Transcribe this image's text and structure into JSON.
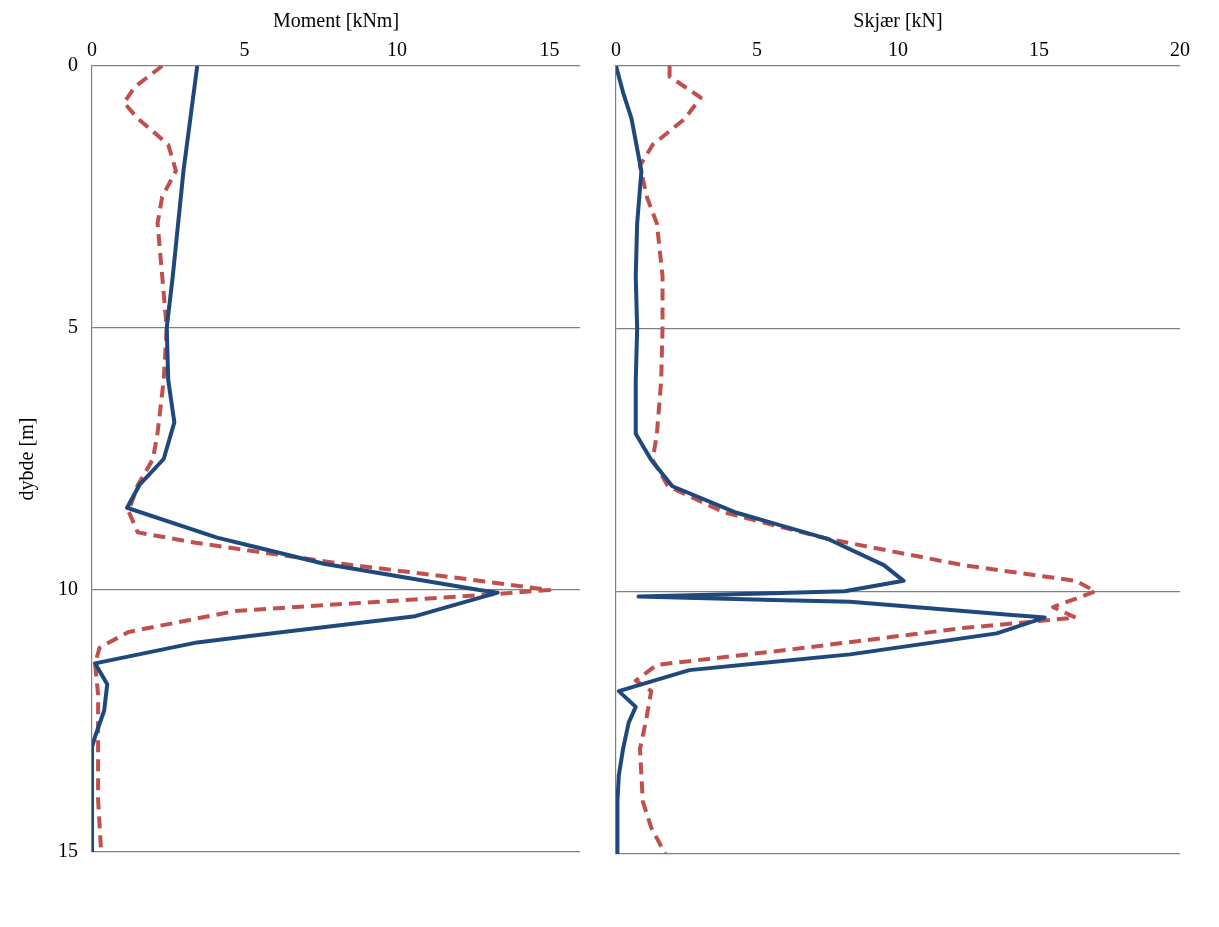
{
  "chart_data": [
    {
      "type": "line",
      "xlabel": "Moment [kNm]",
      "ylabel": "dybde [m]",
      "xlim": [
        0,
        16
      ],
      "xticks": [
        0,
        5,
        10,
        15
      ],
      "ylim": [
        15,
        0
      ],
      "yticks": [
        0,
        5,
        10,
        15
      ],
      "grid": "y",
      "legend": false,
      "marker": "none",
      "series": [
        {
          "color": "#1f497d",
          "line_style": "solid",
          "x": [
            3.45,
            3.0,
            2.65,
            2.45,
            2.5,
            2.7,
            2.35,
            1.55,
            1.15,
            4.1,
            7.6,
            12.7,
            13.3,
            10.6,
            3.45,
            0.1,
            0.5,
            0.4,
            0.1,
            0,
            0
          ],
          "values": [
            0,
            2,
            4,
            5,
            6,
            6.8,
            7.5,
            8,
            8.43,
            9,
            9.5,
            10,
            10.05,
            10.5,
            11,
            11.4,
            11.8,
            12.3,
            12.8,
            13,
            15
          ]
        },
        {
          "color": "#c0504d",
          "line_style": "dashed",
          "x": [
            2.3,
            1.4,
            1.05,
            1.5,
            2.5,
            2.75,
            2.3,
            2.15,
            2.3,
            2.45,
            2.35,
            2.15,
            2.0,
            1.5,
            1.2,
            1.5,
            3.4,
            8.2,
            12.4,
            15.0,
            12.7,
            4.7,
            1.2,
            0.25,
            0.1,
            0.2,
            0.2,
            0.2,
            0.3
          ],
          "values": [
            0,
            0.4,
            0.7,
            1.0,
            1.5,
            2,
            2.5,
            3,
            4,
            5,
            6,
            7,
            7.5,
            8,
            8.5,
            8.9,
            9.1,
            9.5,
            9.8,
            10,
            10.1,
            10.4,
            10.8,
            11.1,
            11.4,
            12,
            13,
            14,
            15
          ]
        }
      ]
    },
    {
      "type": "line",
      "xlabel": "Skjær [kN]",
      "xlim": [
        0,
        20
      ],
      "xticks": [
        0,
        5,
        10,
        15,
        20
      ],
      "ylim": [
        15,
        0
      ],
      "yticks": [
        0,
        5,
        10,
        15
      ],
      "grid": "y",
      "legend": false,
      "marker": "none",
      "tick_labels": "x",
      "series": [
        {
          "color": "#1f497d",
          "line_style": "solid",
          "x": [
            0,
            0.25,
            0.55,
            0.9,
            0.75,
            0.7,
            0.75,
            0.7,
            0.7,
            1.25,
            2.0,
            4.25,
            7.5,
            9.5,
            10.2,
            8.1,
            0.8,
            8.3,
            15.2,
            13.5,
            8.3,
            2.6,
            0.1,
            0.7,
            0.45,
            0.25,
            0.1,
            0.05,
            0.05
          ],
          "values": [
            0,
            0.5,
            1,
            2,
            3,
            4,
            5,
            6,
            7,
            7.5,
            8,
            8.5,
            9,
            9.5,
            9.8,
            10,
            10.1,
            10.2,
            10.5,
            10.8,
            11.2,
            11.5,
            11.9,
            12.2,
            12.5,
            13,
            13.5,
            14,
            15
          ]
        },
        {
          "color": "#c0504d",
          "line_style": "dashed",
          "x": [
            1.9,
            1.9,
            3.0,
            2.45,
            1.3,
            0.85,
            1.1,
            1.45,
            1.65,
            1.65,
            1.6,
            1.45,
            1.3,
            1.85,
            3.85,
            7.5,
            12.3,
            16.3,
            17.0,
            15.5,
            16.3,
            12.3,
            6.3,
            1.45,
            0.7,
            1.25,
            1.05,
            0.85,
            0.95,
            1.25,
            1.75
          ],
          "values": [
            0,
            0.2,
            0.6,
            1.0,
            1.5,
            1.9,
            2.5,
            3,
            4,
            5,
            6,
            7,
            7.5,
            8,
            8.5,
            9,
            9.5,
            9.8,
            10,
            10.3,
            10.5,
            10.7,
            11.1,
            11.4,
            11.7,
            11.9,
            12.5,
            13,
            14,
            14.5,
            15
          ]
        }
      ]
    }
  ]
}
